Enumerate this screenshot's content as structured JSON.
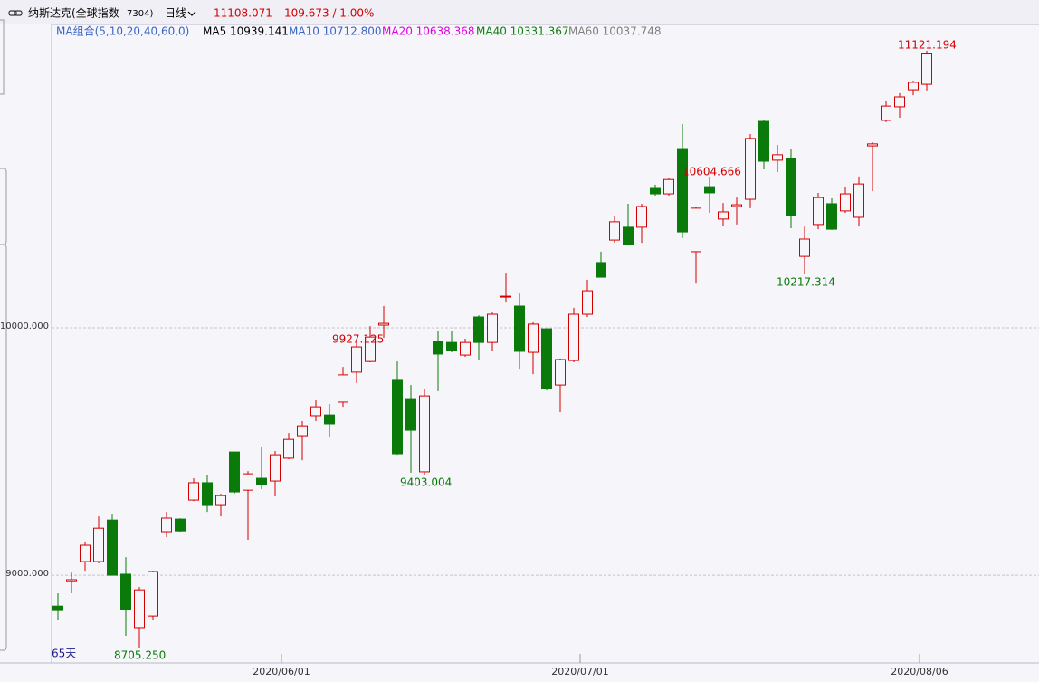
{
  "chart_data": {
    "type": "candlestick",
    "header": {
      "title": "纳斯达克(全球指数",
      "code": "7304)",
      "period": "日线",
      "price": "11108.071",
      "change": "109.673 / 1.00%"
    },
    "ma_legend": [
      {
        "text": "MA组合(5,10,20,40,60,0)",
        "color": "#3a66c4"
      },
      {
        "text": "MA5 10939.141",
        "color": "#000000"
      },
      {
        "text": "MA10 10712.800",
        "color": "#3a66c4"
      },
      {
        "text": "MA20 10638.368",
        "color": "#e000e0"
      },
      {
        "text": "MA40 10331.367",
        "color": "#108010"
      },
      {
        "text": "MA60 10037.748",
        "color": "#808080"
      }
    ],
    "days_label": "65天",
    "annotations": [
      "11121.194",
      "10604.666",
      "9927.125",
      "9403.004",
      "10217.314",
      "8705.250"
    ],
    "up_color": "#d40000",
    "down_color": "#0a7a0a",
    "ylim": [
      8645,
      11227
    ],
    "yticks": [
      {
        "value": 9000,
        "label": "9000.000"
      },
      {
        "value": 10000,
        "label": "10000.000"
      }
    ],
    "grid": true,
    "categories": [
      null,
      null,
      null,
      null,
      null,
      null,
      null,
      null,
      null,
      null,
      null,
      null,
      null,
      null,
      null,
      null,
      "2020/06/01",
      null,
      null,
      null,
      null,
      null,
      null,
      null,
      null,
      null,
      null,
      null,
      null,
      null,
      null,
      null,
      null,
      null,
      null,
      null,
      null,
      null,
      "2020/07/01",
      null,
      null,
      null,
      null,
      null,
      null,
      null,
      null,
      null,
      null,
      null,
      null,
      null,
      null,
      null,
      null,
      null,
      null,
      null,
      null,
      null,
      null,
      null,
      null,
      "2020/08/06",
      null
    ],
    "open": [
      8875,
      8974,
      9055,
      9055,
      9223,
      9004,
      8788,
      8835,
      9176,
      9227,
      9304,
      9374,
      9282,
      9498,
      9344,
      9392,
      9381,
      9473,
      9564,
      9645,
      9648,
      9700,
      9821,
      9864,
      10011,
      9788,
      9714,
      9418,
      9945,
      9941,
      9890,
      10044,
      9941,
      10125,
      10088,
      9901,
      9996,
      9769,
      9868,
      10055,
      10264,
      10355,
      10407,
      10407,
      10564,
      10542,
      10725,
      10308,
      10571,
      10440,
      10491,
      10520,
      10835,
      10678,
      10685,
      10289,
      10418,
      10502,
      10473,
      10447,
      10736,
      10839,
      10894,
      10963,
      10985
    ],
    "high": [
      8927,
      9011,
      9136,
      9238,
      9245,
      9073,
      8952,
      9018,
      9256,
      9230,
      9392,
      9403,
      9330,
      9500,
      9421,
      9520,
      9502,
      9575,
      9623,
      9707,
      9692,
      9842,
      9941,
      10007,
      10088,
      9864,
      9769,
      9751,
      9989,
      9989,
      9956,
      10051,
      10062,
      10223,
      10139,
      10026,
      9996,
      9876,
      10081,
      10194,
      10308,
      10454,
      10502,
      10502,
      10579,
      10604.666,
      10824,
      10491,
      10612,
      10505,
      10527,
      10784,
      10839,
      10740,
      10722,
      10410,
      10546,
      10524,
      10568,
      10612,
      10751,
      10919,
      10949,
      11000,
      11121.194
    ],
    "low": [
      8817,
      8927,
      9018,
      9048,
      9000,
      8755,
      8705.25,
      8817,
      9154,
      9176,
      9300,
      9256,
      9238,
      9330,
      9143,
      9348,
      9319,
      9469,
      9465,
      9623,
      9557,
      9681,
      9777,
      9861,
      9960,
      9487,
      9414,
      9403.004,
      9744,
      9901,
      9883,
      9872,
      9908,
      10106,
      9835,
      9813,
      9747,
      9659,
      9861,
      10044,
      10205,
      10344,
      10333,
      10344,
      10535,
      10535,
      10363,
      10179,
      10465,
      10414,
      10418,
      10484,
      10641,
      10630,
      10403,
      10217.314,
      10399,
      10396,
      10465,
      10410,
      10553,
      10832,
      10850,
      10941,
      10960
    ],
    "close": [
      8857,
      8982,
      9121,
      9190,
      9000,
      8861,
      8941,
      9015,
      9231,
      9179,
      9374,
      9282,
      9322,
      9337,
      9410,
      9366,
      9487,
      9549,
      9604,
      9681,
      9612,
      9810,
      9923,
      9963,
      10018,
      9491,
      9586,
      9725,
      9894,
      9908,
      9941,
      9941,
      10055,
      10128,
      9905,
      10015,
      9755,
      9872,
      10055,
      10150,
      10205,
      10429,
      10337,
      10491,
      10542,
      10600,
      10388,
      10484,
      10546,
      10469,
      10498,
      10766,
      10674,
      10700,
      10454,
      10359,
      10527,
      10399,
      10542,
      10582,
      10744,
      10897,
      10934,
      10993,
      11108
    ]
  }
}
